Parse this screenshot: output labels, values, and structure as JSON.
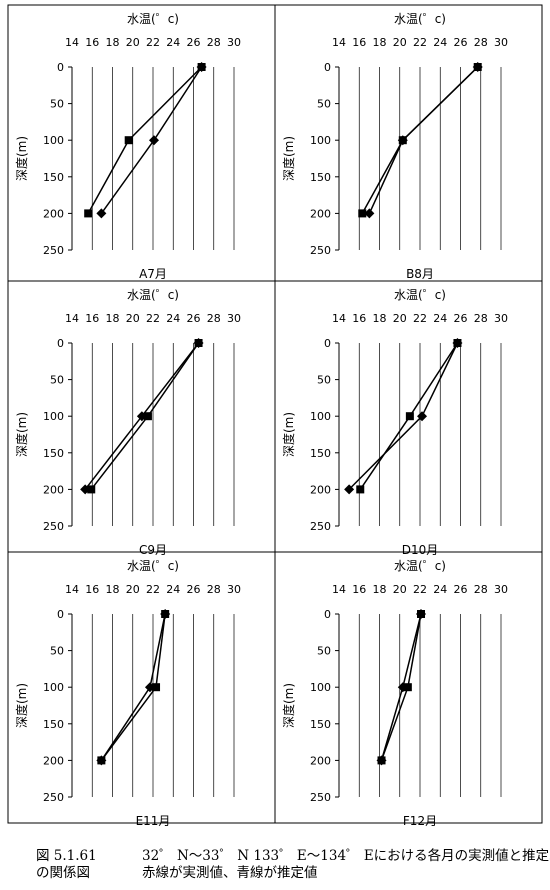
{
  "chart_data": [
    {
      "type": "line",
      "title": "A7月",
      "xlabel": "水温(゜c)",
      "ylabel": "深度(m)",
      "xlim": [
        14,
        30
      ],
      "ylim": [
        0,
        250
      ],
      "y_inverted": true,
      "x_ticks": [
        "14",
        "16",
        "18",
        "20",
        "22",
        "24",
        "26",
        "28",
        "30"
      ],
      "y_ticks": [
        "0",
        "50",
        "100",
        "150",
        "200",
        "250"
      ],
      "grid": "vertical",
      "series": [
        {
          "marker": "diamond",
          "points": [
            [
              26.8,
              0
            ],
            [
              22.1,
              100
            ],
            [
              16.9,
              200
            ]
          ]
        },
        {
          "marker": "square",
          "points": [
            [
              26.8,
              0
            ],
            [
              19.6,
              100
            ],
            [
              15.6,
              200
            ]
          ]
        }
      ]
    },
    {
      "type": "line",
      "title": "B8月",
      "xlabel": "水温(゜c)",
      "ylabel": "深度(m)",
      "xlim": [
        14,
        30
      ],
      "ylim": [
        0,
        250
      ],
      "y_inverted": true,
      "x_ticks": [
        "14",
        "16",
        "18",
        "20",
        "22",
        "24",
        "26",
        "28",
        "30"
      ],
      "y_ticks": [
        "0",
        "50",
        "100",
        "150",
        "200",
        "250"
      ],
      "grid": "vertical",
      "series": [
        {
          "marker": "diamond",
          "points": [
            [
              27.7,
              0
            ],
            [
              20.3,
              100
            ],
            [
              17.0,
              200
            ]
          ]
        },
        {
          "marker": "square",
          "points": [
            [
              27.7,
              0
            ],
            [
              20.3,
              100
            ],
            [
              16.3,
              200
            ]
          ]
        }
      ]
    },
    {
      "type": "line",
      "title": "C9月",
      "xlabel": "水温(゜c)",
      "ylabel": "深度(m)",
      "xlim": [
        14,
        30
      ],
      "ylim": [
        0,
        250
      ],
      "y_inverted": true,
      "x_ticks": [
        "14",
        "16",
        "18",
        "20",
        "22",
        "24",
        "26",
        "28",
        "30"
      ],
      "y_ticks": [
        "0",
        "50",
        "100",
        "150",
        "200",
        "250"
      ],
      "grid": "vertical",
      "series": [
        {
          "marker": "diamond",
          "points": [
            [
              26.5,
              0
            ],
            [
              20.9,
              100
            ],
            [
              15.3,
              200
            ]
          ]
        },
        {
          "marker": "square",
          "points": [
            [
              26.5,
              0
            ],
            [
              21.5,
              100
            ],
            [
              15.9,
              200
            ]
          ]
        }
      ]
    },
    {
      "type": "line",
      "title": "D10月",
      "xlabel": "水温(゜c)",
      "ylabel": "深度(m)",
      "xlim": [
        14,
        30
      ],
      "ylim": [
        0,
        250
      ],
      "y_inverted": true,
      "x_ticks": [
        "14",
        "16",
        "18",
        "20",
        "22",
        "24",
        "26",
        "28",
        "30"
      ],
      "y_ticks": [
        "0",
        "50",
        "100",
        "150",
        "200",
        "250"
      ],
      "grid": "vertical",
      "series": [
        {
          "marker": "diamond",
          "points": [
            [
              25.7,
              0
            ],
            [
              22.2,
              100
            ],
            [
              15.0,
              200
            ]
          ]
        },
        {
          "marker": "square",
          "points": [
            [
              25.7,
              0
            ],
            [
              21.0,
              100
            ],
            [
              16.1,
              200
            ]
          ]
        }
      ]
    },
    {
      "type": "line",
      "title": "E11月",
      "xlabel": "水温(゜c)",
      "ylabel": "深度(m)",
      "xlim": [
        14,
        30
      ],
      "ylim": [
        0,
        250
      ],
      "y_inverted": true,
      "x_ticks": [
        "14",
        "16",
        "18",
        "20",
        "22",
        "24",
        "26",
        "28",
        "30"
      ],
      "y_ticks": [
        "0",
        "50",
        "100",
        "150",
        "200",
        "250"
      ],
      "grid": "vertical",
      "series": [
        {
          "marker": "diamond",
          "points": [
            [
              23.2,
              0
            ],
            [
              21.7,
              100
            ],
            [
              16.9,
              200
            ]
          ]
        },
        {
          "marker": "square",
          "points": [
            [
              23.2,
              0
            ],
            [
              22.3,
              100
            ],
            [
              16.9,
              200
            ]
          ]
        }
      ]
    },
    {
      "type": "line",
      "title": "F12月",
      "xlabel": "水温(゜c)",
      "ylabel": "深度(m)",
      "xlim": [
        14,
        30
      ],
      "ylim": [
        0,
        250
      ],
      "y_inverted": true,
      "x_ticks": [
        "14",
        "16",
        "18",
        "20",
        "22",
        "24",
        "26",
        "28",
        "30"
      ],
      "y_ticks": [
        "0",
        "50",
        "100",
        "150",
        "200",
        "250"
      ],
      "grid": "vertical",
      "series": [
        {
          "marker": "diamond",
          "points": [
            [
              22.1,
              0
            ],
            [
              20.3,
              100
            ],
            [
              18.2,
              200
            ]
          ]
        },
        {
          "marker": "square",
          "points": [
            [
              22.1,
              0
            ],
            [
              20.8,
              100
            ],
            [
              18.2,
              200
            ]
          ]
        }
      ]
    }
  ],
  "caption": {
    "label_line1": "図 5.1.61",
    "text_line1": "32゜ N～33゜ N 133゜ E～134゜ Eにおける各月の実測値と推定水温",
    "label_line2": "の関係図",
    "text_line2": "赤線が実測値、青線が推定値"
  }
}
